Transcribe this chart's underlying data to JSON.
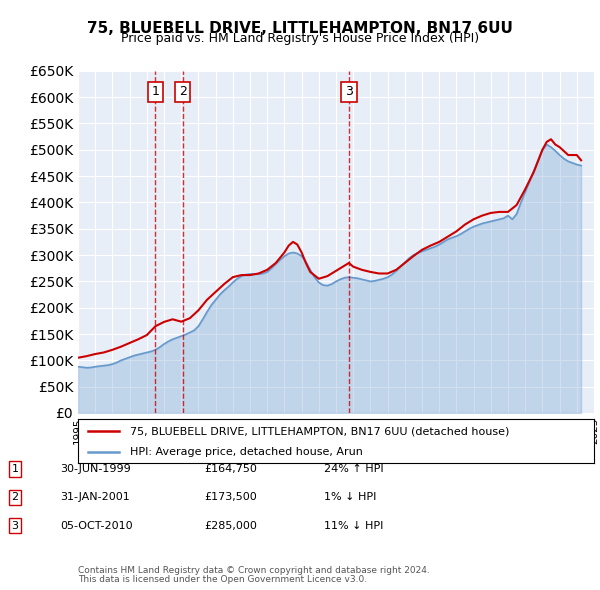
{
  "title": "75, BLUEBELL DRIVE, LITTLEHAMPTON, BN17 6UU",
  "subtitle": "Price paid vs. HM Land Registry's House Price Index (HPI)",
  "legend_line1": "75, BLUEBELL DRIVE, LITTLEHAMPTON, BN17 6UU (detached house)",
  "legend_line2": "HPI: Average price, detached house, Arun",
  "footnote1": "Contains HM Land Registry data © Crown copyright and database right 2024.",
  "footnote2": "This data is licensed under the Open Government Licence v3.0.",
  "transactions": [
    {
      "num": 1,
      "date": "30-JUN-1999",
      "price": "£164,750",
      "hpi": "24% ↑ HPI",
      "year": 1999.5
    },
    {
      "num": 2,
      "date": "31-JAN-2001",
      "price": "£173,500",
      "hpi": "1% ↓ HPI",
      "year": 2001.08
    },
    {
      "num": 3,
      "date": "05-OCT-2010",
      "price": "£285,000",
      "hpi": "11% ↓ HPI",
      "year": 2010.75
    }
  ],
  "red_color": "#cc0000",
  "blue_color": "#6699cc",
  "background_plot": "#e8eef8",
  "grid_color": "#ffffff",
  "ylim": [
    0,
    650000
  ],
  "yticks": [
    0,
    50000,
    100000,
    150000,
    200000,
    250000,
    300000,
    350000,
    400000,
    450000,
    500000,
    550000,
    600000,
    650000
  ],
  "hpi_data": {
    "years": [
      1995.0,
      1995.25,
      1995.5,
      1995.75,
      1996.0,
      1996.25,
      1996.5,
      1996.75,
      1997.0,
      1997.25,
      1997.5,
      1997.75,
      1998.0,
      1998.25,
      1998.5,
      1998.75,
      1999.0,
      1999.25,
      1999.5,
      1999.75,
      2000.0,
      2000.25,
      2000.5,
      2000.75,
      2001.0,
      2001.25,
      2001.5,
      2001.75,
      2002.0,
      2002.25,
      2002.5,
      2002.75,
      2003.0,
      2003.25,
      2003.5,
      2003.75,
      2004.0,
      2004.25,
      2004.5,
      2004.75,
      2005.0,
      2005.25,
      2005.5,
      2005.75,
      2006.0,
      2006.25,
      2006.5,
      2006.75,
      2007.0,
      2007.25,
      2007.5,
      2007.75,
      2008.0,
      2008.25,
      2008.5,
      2008.75,
      2009.0,
      2009.25,
      2009.5,
      2009.75,
      2010.0,
      2010.25,
      2010.5,
      2010.75,
      2011.0,
      2011.25,
      2011.5,
      2011.75,
      2012.0,
      2012.25,
      2012.5,
      2012.75,
      2013.0,
      2013.25,
      2013.5,
      2013.75,
      2014.0,
      2014.25,
      2014.5,
      2014.75,
      2015.0,
      2015.25,
      2015.5,
      2015.75,
      2016.0,
      2016.25,
      2016.5,
      2016.75,
      2017.0,
      2017.25,
      2017.5,
      2017.75,
      2018.0,
      2018.25,
      2018.5,
      2018.75,
      2019.0,
      2019.25,
      2019.5,
      2019.75,
      2020.0,
      2020.25,
      2020.5,
      2020.75,
      2021.0,
      2021.25,
      2021.5,
      2021.75,
      2022.0,
      2022.25,
      2022.5,
      2022.75,
      2023.0,
      2023.25,
      2023.5,
      2023.75,
      2024.0,
      2024.25
    ],
    "values": [
      88000,
      87000,
      86000,
      86500,
      88000,
      89000,
      90000,
      91000,
      93000,
      96000,
      100000,
      103000,
      106000,
      109000,
      111000,
      113000,
      115000,
      117000,
      120000,
      125000,
      131000,
      136000,
      140000,
      143000,
      146000,
      149000,
      153000,
      157000,
      165000,
      178000,
      192000,
      205000,
      215000,
      225000,
      233000,
      240000,
      248000,
      255000,
      260000,
      263000,
      264000,
      264000,
      264000,
      265000,
      268000,
      275000,
      283000,
      291000,
      298000,
      303000,
      305000,
      303000,
      298000,
      287000,
      272000,
      258000,
      248000,
      243000,
      242000,
      245000,
      250000,
      254000,
      257000,
      258000,
      257000,
      256000,
      254000,
      252000,
      250000,
      251000,
      253000,
      255000,
      258000,
      263000,
      270000,
      278000,
      286000,
      294000,
      300000,
      304000,
      307000,
      310000,
      313000,
      316000,
      320000,
      325000,
      330000,
      333000,
      336000,
      340000,
      345000,
      350000,
      354000,
      357000,
      360000,
      362000,
      364000,
      366000,
      368000,
      370000,
      375000,
      368000,
      378000,
      400000,
      420000,
      440000,
      460000,
      480000,
      500000,
      510000,
      505000,
      498000,
      490000,
      483000,
      478000,
      475000,
      472000,
      470000
    ]
  },
  "price_data": {
    "years": [
      1995.0,
      1995.5,
      1996.0,
      1996.5,
      1997.0,
      1997.5,
      1998.0,
      1998.5,
      1999.0,
      1999.5,
      2000.0,
      2000.5,
      2001.0,
      2001.5,
      2002.0,
      2002.5,
      2003.0,
      2003.5,
      2004.0,
      2004.5,
      2005.0,
      2005.5,
      2006.0,
      2006.5,
      2007.0,
      2007.25,
      2007.5,
      2007.75,
      2008.0,
      2008.25,
      2008.5,
      2009.0,
      2009.5,
      2010.0,
      2010.5,
      2010.75,
      2011.0,
      2011.5,
      2012.0,
      2012.5,
      2013.0,
      2013.5,
      2014.0,
      2014.5,
      2015.0,
      2015.5,
      2016.0,
      2016.5,
      2017.0,
      2017.5,
      2018.0,
      2018.5,
      2019.0,
      2019.5,
      2020.0,
      2020.5,
      2021.0,
      2021.5,
      2022.0,
      2022.25,
      2022.5,
      2022.75,
      2023.0,
      2023.5,
      2024.0,
      2024.25
    ],
    "values": [
      105000,
      108000,
      112000,
      115000,
      120000,
      126000,
      133000,
      140000,
      148000,
      164750,
      173000,
      178000,
      173500,
      180000,
      195000,
      215000,
      230000,
      245000,
      258000,
      262000,
      262000,
      265000,
      272000,
      285000,
      305000,
      318000,
      325000,
      320000,
      305000,
      285000,
      268000,
      255000,
      260000,
      270000,
      280000,
      285000,
      278000,
      272000,
      268000,
      265000,
      265000,
      272000,
      285000,
      298000,
      310000,
      318000,
      325000,
      335000,
      345000,
      358000,
      368000,
      375000,
      380000,
      382000,
      382000,
      395000,
      425000,
      458000,
      500000,
      515000,
      520000,
      510000,
      505000,
      490000,
      490000,
      480000
    ]
  }
}
